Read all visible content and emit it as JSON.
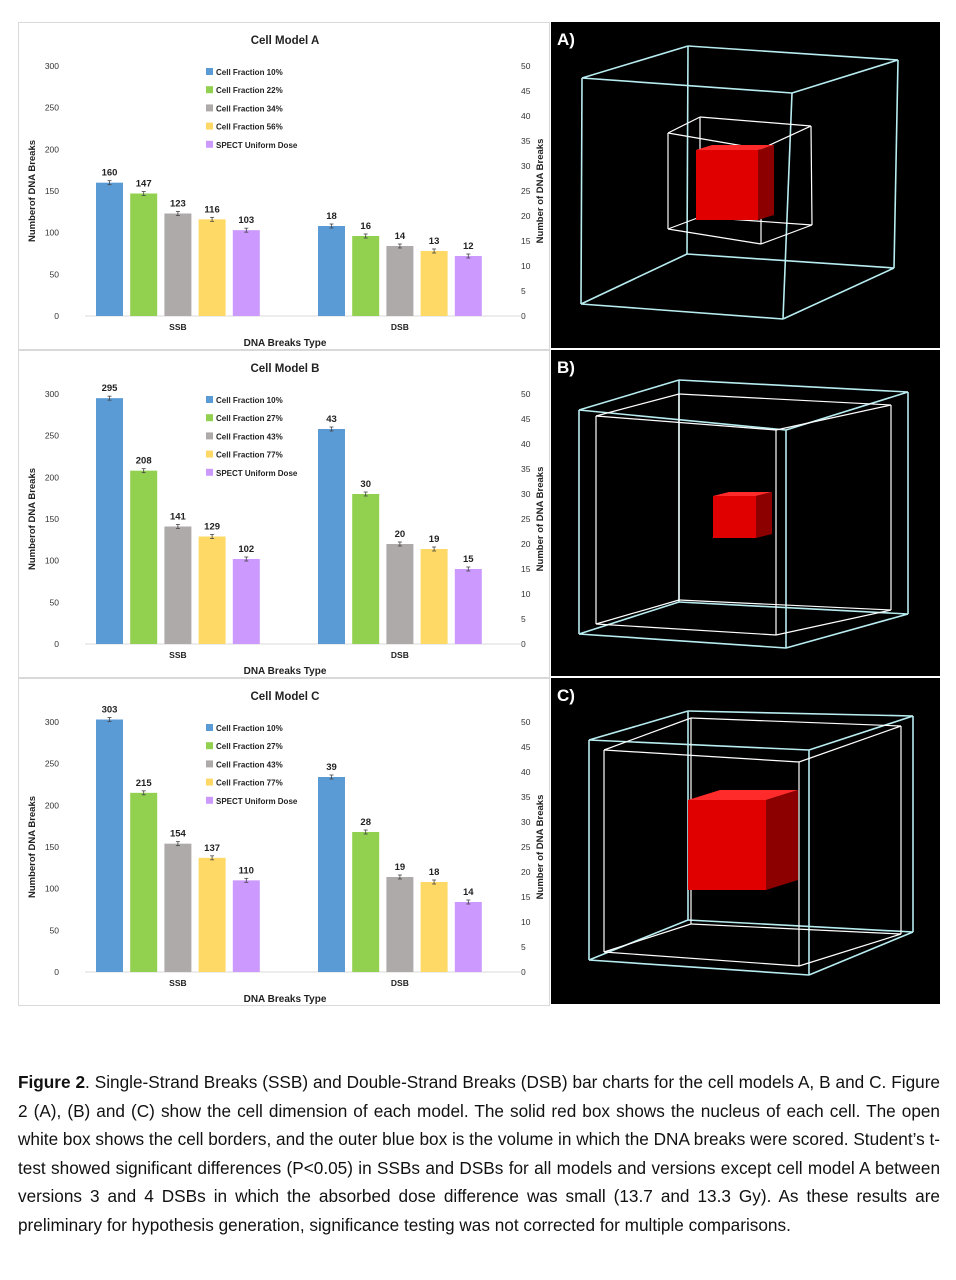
{
  "figure": {
    "caption_label": "Figure 2",
    "caption_text": ". Single-Strand Breaks (SSB) and Double-Strand Breaks (DSB) bar charts for the cell models A, B and C. Figure 2 (A), (B) and (C) show the cell dimension of each model. The solid red box shows the nucleus of each cell. The open white box shows the cell borders, and the outer blue box is the volume in which the DNA breaks were scored. Student’s t-test showed significant differences (P<0.05) in SSBs and DSBs for all models and versions except cell model A between versions 3 and 4 DSBs in which the absorbed dose difference was small (13.7 and 13.3 Gy). As these results are preliminary for hypothesis generation, significance testing was not corrected for multiple comparisons."
  },
  "cube_panels": [
    {
      "label": "A)"
    },
    {
      "label": "B)"
    },
    {
      "label": "C)"
    }
  ],
  "colors": {
    "series": [
      "#5b9bd5",
      "#92d050",
      "#aeaaaa",
      "#ffd966",
      "#cc99ff"
    ],
    "cube_bg": "#000000",
    "outer_box": "#b7ecf0",
    "cell_box": "#ffffff",
    "nucleus": "#e00000"
  },
  "chart_data": [
    {
      "type": "bar",
      "title": "Cell Model A",
      "xlabel": "DNA Breaks Type",
      "ylabel": "Numberof DNA Breaks",
      "y2label": "Number of DNA Breaks",
      "categories": [
        "SSB",
        "DSB"
      ],
      "ylim": [
        0,
        300
      ],
      "yticks": [
        "0",
        "50",
        "100",
        "150",
        "200",
        "250",
        "300"
      ],
      "y2lim": [
        0,
        50
      ],
      "y2ticks": [
        "0",
        "5",
        "10",
        "15",
        "20",
        "25",
        "30",
        "35",
        "40",
        "45",
        "50"
      ],
      "legend": "top-center",
      "series": [
        {
          "name": "Cell Fraction 10%",
          "values": [
            160,
            18
          ]
        },
        {
          "name": "Cell Fraction 22%",
          "values": [
            147,
            16
          ]
        },
        {
          "name": "Cell Fraction 34%",
          "values": [
            123,
            14
          ]
        },
        {
          "name": "Cell Fraction 56%",
          "values": [
            116,
            13
          ]
        },
        {
          "name": "SPECT Uniform Dose",
          "values": [
            103,
            12
          ]
        }
      ]
    },
    {
      "type": "bar",
      "title": "Cell Model B",
      "xlabel": "DNA Breaks Type",
      "ylabel": "Numberof DNA Breaks",
      "y2label": "Number of DNA Breaks",
      "categories": [
        "SSB",
        "DSB"
      ],
      "ylim": [
        0,
        300
      ],
      "yticks": [
        "0",
        "50",
        "100",
        "150",
        "200",
        "250",
        "300"
      ],
      "y2lim": [
        0,
        50
      ],
      "y2ticks": [
        "0",
        "5",
        "10",
        "15",
        "20",
        "25",
        "30",
        "35",
        "40",
        "45",
        "50"
      ],
      "legend": "top-center",
      "series": [
        {
          "name": "Cell Fraction 10%",
          "values": [
            295,
            43
          ]
        },
        {
          "name": "Cell Fraction 27%",
          "values": [
            208,
            30
          ]
        },
        {
          "name": "Cell Fraction 43%",
          "values": [
            141,
            20
          ]
        },
        {
          "name": "Cell Fraction 77%",
          "values": [
            129,
            19
          ]
        },
        {
          "name": "SPECT Uniform Dose",
          "values": [
            102,
            15
          ]
        }
      ]
    },
    {
      "type": "bar",
      "title": "Cell Model C",
      "xlabel": "DNA Breaks Type",
      "ylabel": "Numberof DNA Breaks",
      "y2label": "Number of DNA Breaks",
      "categories": [
        "SSB",
        "DSB"
      ],
      "ylim": [
        0,
        300
      ],
      "yticks": [
        "0",
        "50",
        "100",
        "150",
        "200",
        "250",
        "300"
      ],
      "y2lim": [
        0,
        50
      ],
      "y2ticks": [
        "0",
        "5",
        "10",
        "15",
        "20",
        "25",
        "30",
        "35",
        "40",
        "45",
        "50"
      ],
      "legend": "top-center",
      "series": [
        {
          "name": "Cell Fraction 10%",
          "values": [
            303,
            39
          ]
        },
        {
          "name": "Cell Fraction 27%",
          "values": [
            215,
            28
          ]
        },
        {
          "name": "Cell Fraction 43%",
          "values": [
            154,
            19
          ]
        },
        {
          "name": "Cell Fraction 77%",
          "values": [
            137,
            18
          ]
        },
        {
          "name": "SPECT Uniform Dose",
          "values": [
            110,
            14
          ]
        }
      ]
    }
  ]
}
